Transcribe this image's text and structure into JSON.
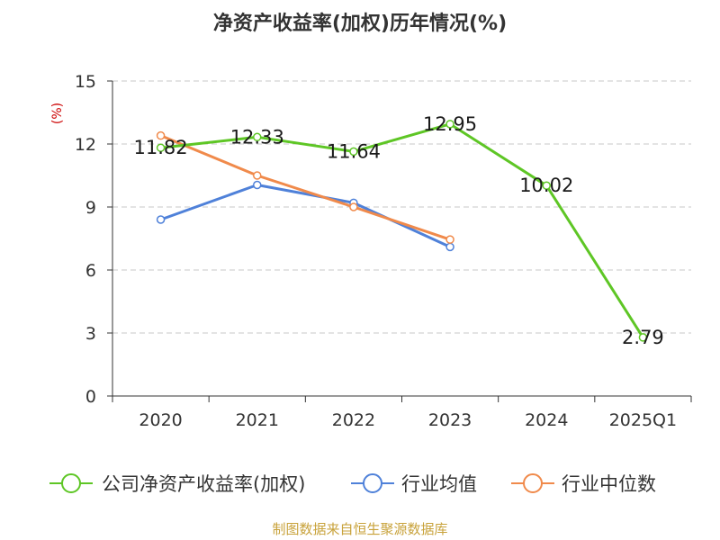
{
  "chart_data": {
    "type": "line",
    "title": "净资产收益率(加权)历年情况(%)",
    "ylabel": "(%)",
    "xlabel": "",
    "categories": [
      "2020",
      "2021",
      "2022",
      "2023",
      "2024",
      "2025Q1"
    ],
    "ylim": [
      0,
      15
    ],
    "yticks": [
      0,
      3,
      6,
      9,
      12,
      15
    ],
    "grid": true,
    "legend_position": "bottom",
    "series": [
      {
        "name": "公司净资产收益率(加权)",
        "color": "#5ec625",
        "values": [
          11.82,
          12.33,
          11.64,
          12.95,
          10.02,
          2.79
        ],
        "labels": [
          "11.82",
          "12.33",
          "11.64",
          "12.95",
          "10.02",
          "2.79"
        ]
      },
      {
        "name": "行业均值",
        "color": "#4f81d9",
        "values": [
          8.4,
          10.05,
          9.2,
          7.1,
          null,
          null
        ]
      },
      {
        "name": "行业中位数",
        "color": "#f08a4b",
        "values": [
          12.4,
          10.5,
          9.0,
          7.45,
          null,
          null
        ]
      }
    ],
    "source": "制图数据来自恒生聚源数据库"
  }
}
